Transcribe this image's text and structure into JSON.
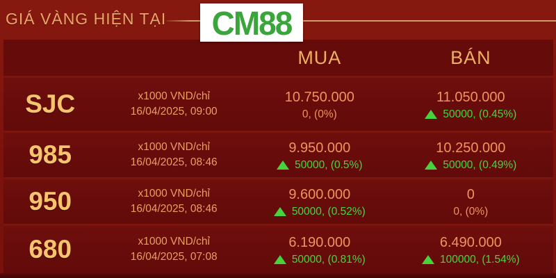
{
  "banner": {
    "title": "GIÁ VÀNG HIỆN TẠI",
    "logo": "CM88"
  },
  "table": {
    "columns": {
      "buy": "MUA",
      "sell": "BÁN"
    },
    "rows": [
      {
        "code": "SJC",
        "unit": "x1000 VND/chỉ",
        "time": "16/04/2025, 09:00",
        "buy": {
          "price": "10.750.000",
          "change": "0, (0%)",
          "up": false
        },
        "sell": {
          "price": "11.050.000",
          "change": "50000, (0.45%)",
          "up": true
        }
      },
      {
        "code": "985",
        "unit": "x1000 VND/chỉ",
        "time": "16/04/2025, 08:46",
        "buy": {
          "price": "9.950.000",
          "change": "50000, (0.5%)",
          "up": true
        },
        "sell": {
          "price": "10.250.000",
          "change": "50000, (0.49%)",
          "up": true
        }
      },
      {
        "code": "950",
        "unit": "x1000 VND/chỉ",
        "time": "16/04/2025, 08:46",
        "buy": {
          "price": "9.600.000",
          "change": "50000, (0.52%)",
          "up": true
        },
        "sell": {
          "price": "0",
          "change": "0, (0%)",
          "up": false
        }
      },
      {
        "code": "680",
        "unit": "x1000 VND/chỉ",
        "time": "16/04/2025, 07:08",
        "buy": {
          "price": "6.190.000",
          "change": "50000, (0.81%)",
          "up": true
        },
        "sell": {
          "price": "6.490.000",
          "change": "100000, (1.54%)",
          "up": true
        }
      }
    ]
  },
  "colors": {
    "page_background": "#7d150f",
    "row_background": "#690c0b",
    "title_gold": "#eba567",
    "code_gold": "#f6c46d",
    "price_salmon": "#f0935e",
    "up_green": "#40d83e",
    "logo_green": "#3aa53a",
    "logo_background": "#ffffff",
    "divider_line": "#cf9c6c"
  }
}
